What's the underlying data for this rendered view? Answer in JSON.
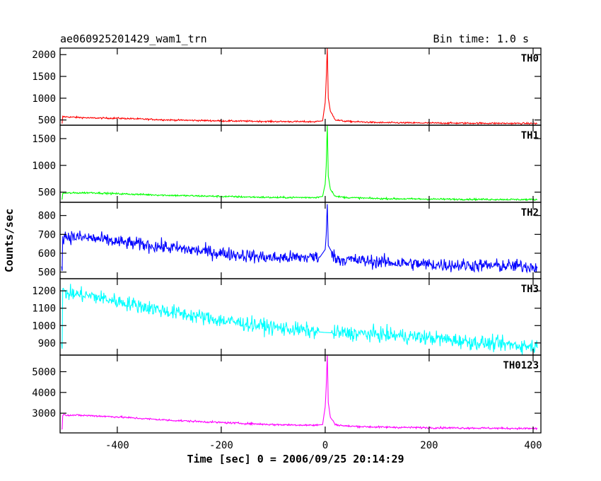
{
  "header": {
    "title": "ae060925201429_wam1_trn",
    "bin_time": "Bin time: 1.0 s"
  },
  "chart_data": {
    "type": "line",
    "xlabel": "Time [sec] 0 = 2006/09/25 20:14:29",
    "ylabel": "Counts/sec",
    "xlim": [
      -510,
      415
    ],
    "x_ticks": [
      -400,
      -200,
      0,
      200,
      400
    ],
    "grid": false,
    "legend": "none",
    "panels": [
      {
        "name": "TH0",
        "color": "#ff0000",
        "ylim": [
          380,
          2150
        ],
        "y_ticks": [
          500,
          1000,
          1500,
          2000
        ],
        "points": [
          [
            -505,
            575
          ],
          [
            -450,
            545
          ],
          [
            -400,
            540
          ],
          [
            -300,
            500
          ],
          [
            -200,
            480
          ],
          [
            -100,
            465
          ],
          [
            -20,
            460
          ],
          [
            -5,
            480
          ],
          [
            0,
            900
          ],
          [
            2,
            1450
          ],
          [
            4,
            2150
          ],
          [
            6,
            1000
          ],
          [
            10,
            700
          ],
          [
            20,
            500
          ],
          [
            40,
            470
          ],
          [
            100,
            440
          ],
          [
            200,
            430
          ],
          [
            300,
            425
          ],
          [
            405,
            420
          ]
        ],
        "noise": 18
      },
      {
        "name": "TH1",
        "color": "#00ff00",
        "ylim": [
          310,
          1750
        ],
        "y_ticks": [
          500,
          1000,
          1500
        ],
        "points": [
          [
            -505,
            480
          ],
          [
            -450,
            490
          ],
          [
            -400,
            470
          ],
          [
            -300,
            440
          ],
          [
            -200,
            420
          ],
          [
            -100,
            400
          ],
          [
            -20,
            400
          ],
          [
            -5,
            420
          ],
          [
            0,
            650
          ],
          [
            2,
            1000
          ],
          [
            4,
            1750
          ],
          [
            6,
            800
          ],
          [
            10,
            550
          ],
          [
            20,
            420
          ],
          [
            40,
            400
          ],
          [
            100,
            380
          ],
          [
            200,
            370
          ],
          [
            300,
            365
          ],
          [
            405,
            360
          ]
        ],
        "noise": 16
      },
      {
        "name": "TH2",
        "color": "#0000ff",
        "ylim": [
          465,
          870
        ],
        "y_ticks": [
          500,
          600,
          700,
          800
        ],
        "points": [
          [
            -505,
            690
          ],
          [
            -450,
            680
          ],
          [
            -400,
            660
          ],
          [
            -300,
            630
          ],
          [
            -200,
            600
          ],
          [
            -100,
            575
          ],
          [
            -10,
            580
          ],
          [
            0,
            620
          ],
          [
            2,
            700
          ],
          [
            4,
            860
          ],
          [
            6,
            640
          ],
          [
            20,
            570
          ],
          [
            100,
            555
          ],
          [
            200,
            540
          ],
          [
            300,
            535
          ],
          [
            405,
            530
          ]
        ],
        "noise": 35
      },
      {
        "name": "TH3",
        "color": "#00ffff",
        "ylim": [
          830,
          1270
        ],
        "y_ticks": [
          900,
          1000,
          1100,
          1200
        ],
        "points": [
          [
            -505,
            1190
          ],
          [
            -450,
            1170
          ],
          [
            -400,
            1140
          ],
          [
            -300,
            1080
          ],
          [
            -200,
            1030
          ],
          [
            -100,
            990
          ],
          [
            0,
            960
          ],
          [
            100,
            950
          ],
          [
            200,
            930
          ],
          [
            300,
            900
          ],
          [
            405,
            880
          ]
        ],
        "noise": 42
      },
      {
        "name": "TH0123",
        "color": "#ff00ff",
        "ylim": [
          2050,
          5800
        ],
        "y_ticks": [
          3000,
          4000,
          5000
        ],
        "points": [
          [
            -505,
            2920
          ],
          [
            -450,
            2880
          ],
          [
            -400,
            2820
          ],
          [
            -300,
            2660
          ],
          [
            -200,
            2550
          ],
          [
            -100,
            2450
          ],
          [
            -20,
            2420
          ],
          [
            -5,
            2450
          ],
          [
            0,
            3300
          ],
          [
            2,
            4300
          ],
          [
            4,
            5800
          ],
          [
            6,
            3500
          ],
          [
            10,
            2800
          ],
          [
            20,
            2450
          ],
          [
            40,
            2380
          ],
          [
            100,
            2330
          ],
          [
            200,
            2300
          ],
          [
            300,
            2280
          ],
          [
            405,
            2260
          ]
        ],
        "noise": 45
      }
    ]
  }
}
